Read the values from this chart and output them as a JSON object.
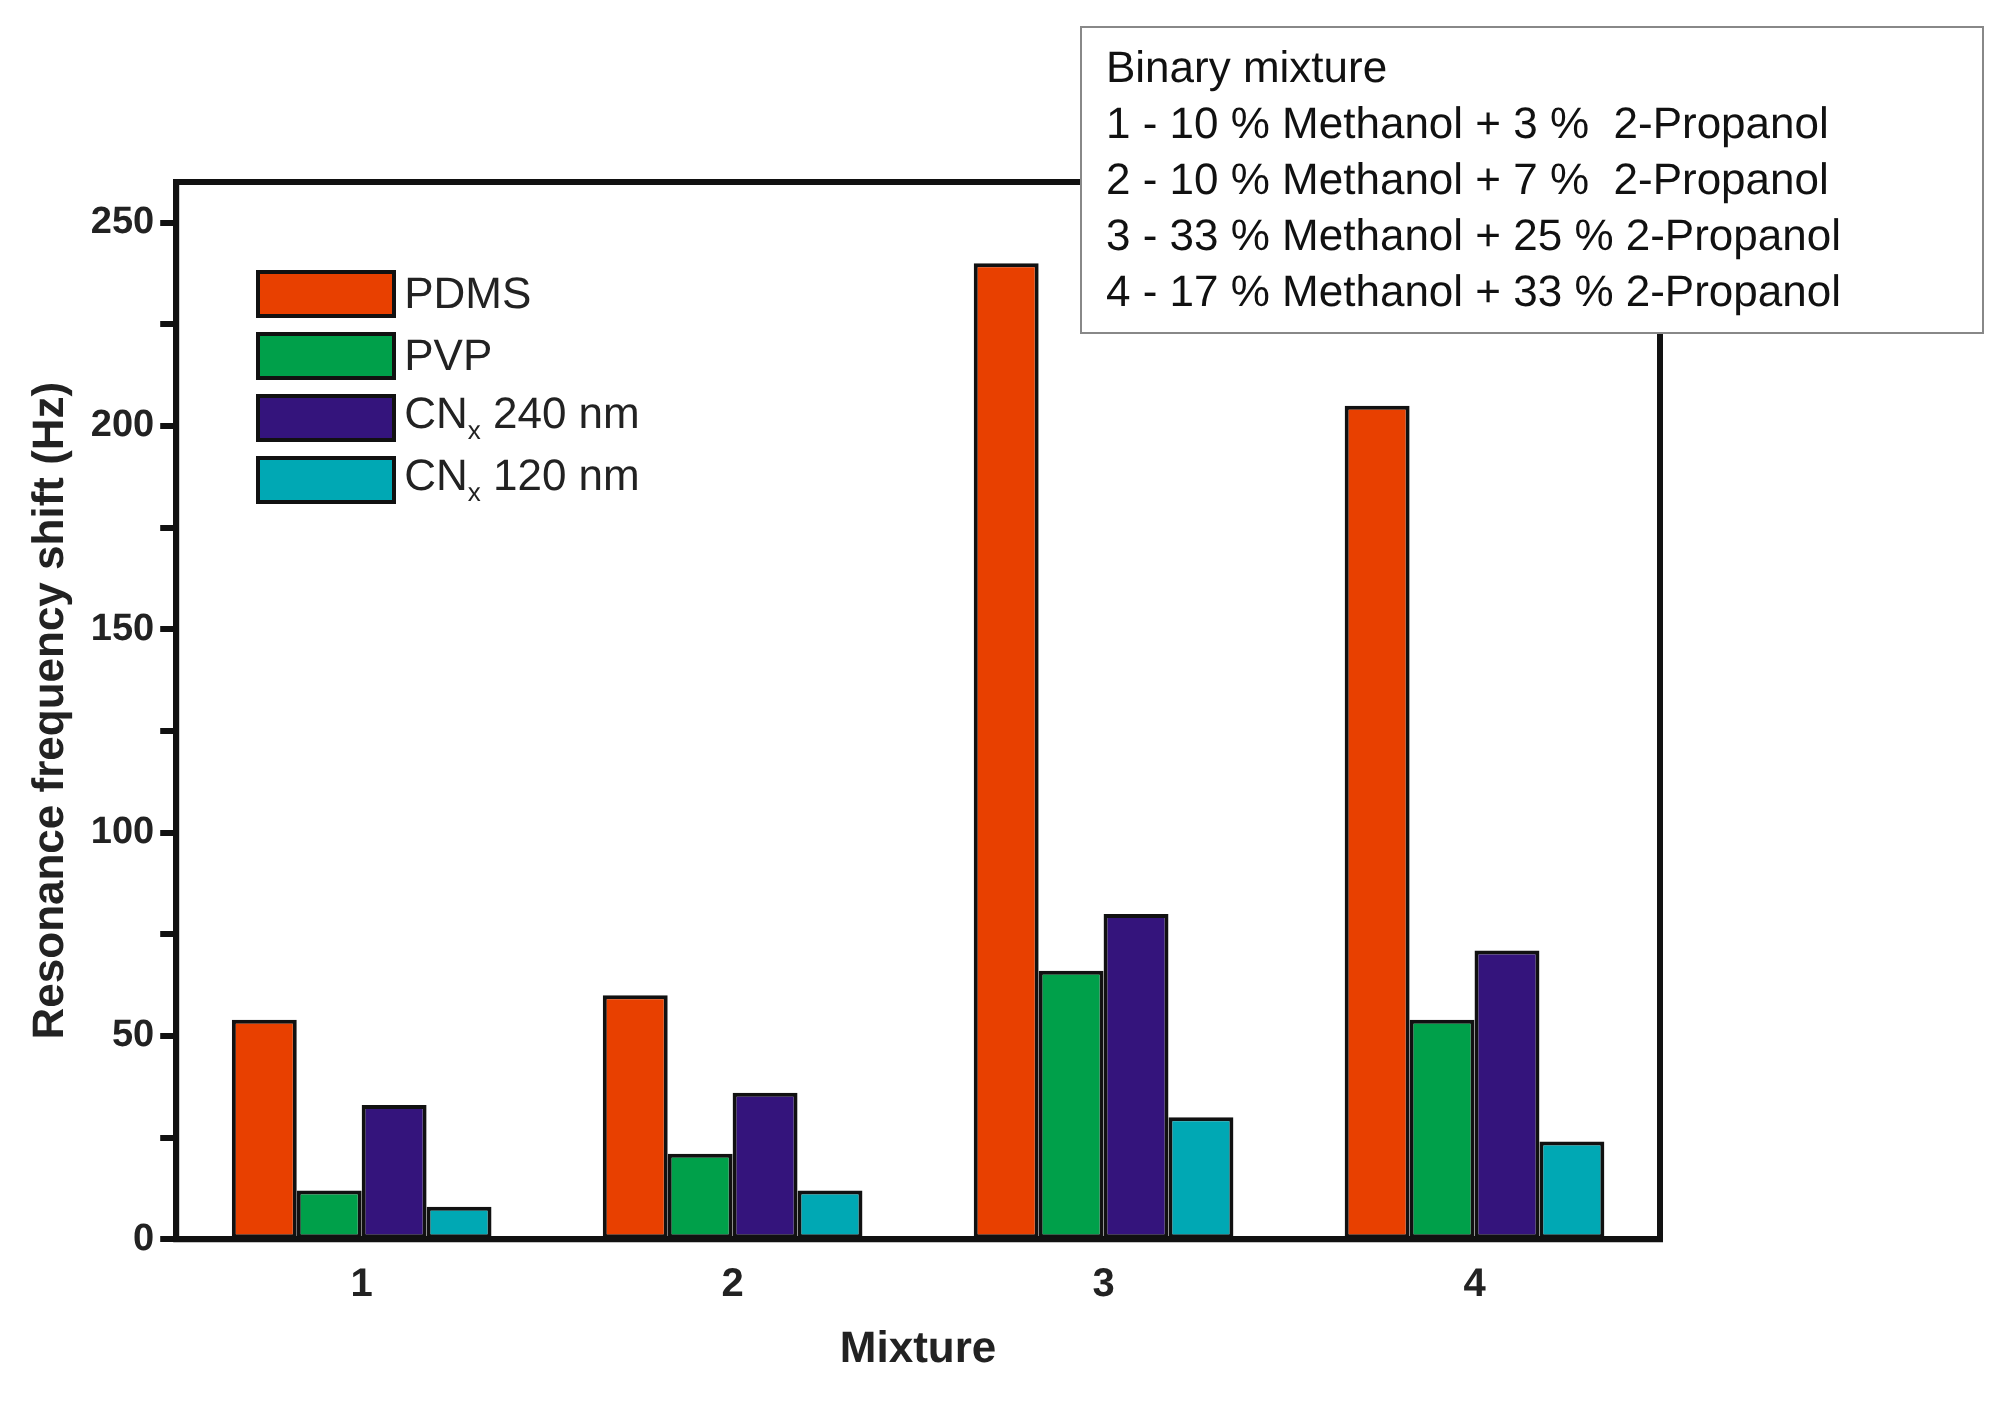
{
  "chart_data": {
    "type": "bar",
    "xlabel": "Mixture",
    "ylabel": "Resonance frequency shift (Hz)",
    "categories": [
      "1",
      "2",
      "3",
      "4"
    ],
    "series": [
      {
        "name": "PDMS",
        "color": "#e84000",
        "values": [
          54,
          60,
          240,
          205
        ]
      },
      {
        "name": "PVP",
        "color": "#00a04a",
        "values": [
          12,
          21,
          66,
          54
        ]
      },
      {
        "name": "CN$_{x}$ 240 nm",
        "color": "#34147c",
        "values": [
          33,
          36,
          80,
          71
        ]
      },
      {
        "name": "CN$_{x}$ 120 nm",
        "color": "#00a8b4",
        "values": [
          8,
          12,
          30,
          24
        ]
      }
    ],
    "ylim": [
      0,
      260
    ],
    "yticks": [
      0,
      {
        "value": 25,
        "label": null
      },
      50,
      {
        "value": 75,
        "label": null
      },
      100,
      {
        "value": 125,
        "label": null
      },
      150,
      {
        "value": 175,
        "label": null
      },
      200,
      {
        "value": 225,
        "label": null
      },
      250
    ],
    "grid": false,
    "legend": "top left",
    "annotations": [
      "Binary mixture",
      "1 - 10 % Methanol + 3 %  2-Propanol",
      "2 - 10 % Methanol + 7 %  2-Propanol",
      "3 - 33 % Methanol + 25 % 2-Propanol",
      "4 - 17 % Methanol + 33 % 2-Propanol"
    ]
  }
}
